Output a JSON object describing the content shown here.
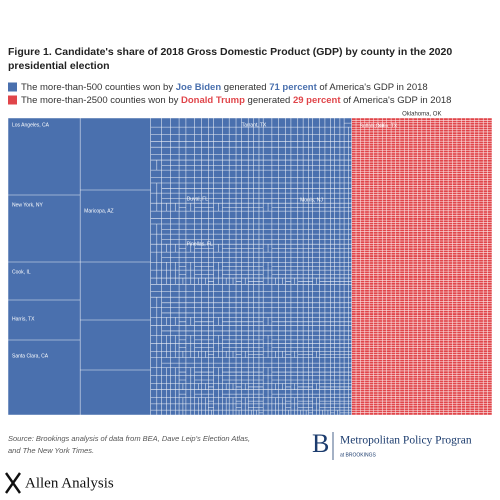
{
  "chart_data": {
    "type": "treemap",
    "title": [
      "Figure 1. Candidate's share of 2018 Gross Domestic Product (GDP) by county in the 2020",
      "presidential election"
    ],
    "series": [
      {
        "name": "Joe Biden",
        "color": "#4a70ae",
        "values": [
          71
        ],
        "value_labels": [
          "71 percent"
        ],
        "legend_text": [
          "The more-than-500 counties won by",
          "generated",
          "of America's GDP in 2018"
        ]
      },
      {
        "name": "Donald Trump",
        "color": "#e0454a",
        "values": [
          29
        ],
        "value_labels": [
          "29 percent"
        ],
        "legend_text": [
          "The more-than-2500 counties won by",
          "generated",
          "of America's GDP in 2018"
        ]
      }
    ],
    "annotations": [
      "Los Angeles, CA",
      "New York, NY",
      "Cook, IL",
      "Harris, TX",
      "Santa Clara, CA",
      "Maricopa, AZ",
      "Tarrant, TX",
      "Duval, FL",
      "Morris, NJ",
      "Pinellas, FL",
      "Oklahoma, OK",
      "Suffolk, NY",
      "Collin, TX"
    ],
    "source": [
      "Source: Brookings analysis of data from BEA, Dave Leip's Election Atlas,",
      "and The New York Times."
    ]
  },
  "footer": {
    "logo_letter": "B",
    "logo_title": "Metropolitan Policy Progran",
    "logo_subtitle": "at BROOKINGS",
    "watermark": "Allen Analysis"
  }
}
